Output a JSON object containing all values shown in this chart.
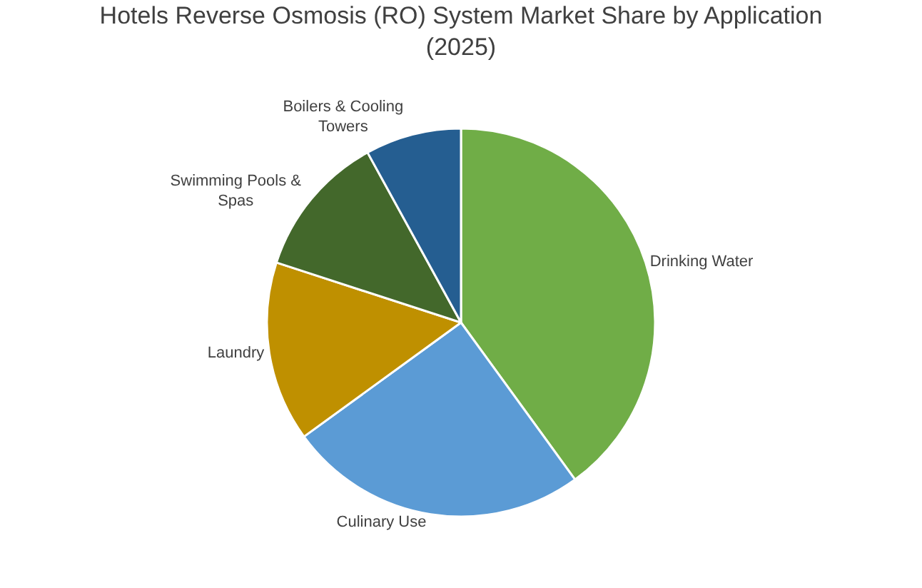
{
  "chart_data": {
    "type": "pie",
    "title": "Hotels Reverse Osmosis (RO) System Market Share by Application (2025)",
    "categories": [
      "Drinking Water",
      "Culinary Use",
      "Laundry",
      "Swimming Pools & Spas",
      "Boilers & Cooling Towers"
    ],
    "values": [
      40,
      25,
      15,
      12,
      8
    ],
    "colors": [
      "#70ad47",
      "#5b9bd5",
      "#bf9000",
      "#43682b",
      "#255e91"
    ],
    "legend": false
  }
}
